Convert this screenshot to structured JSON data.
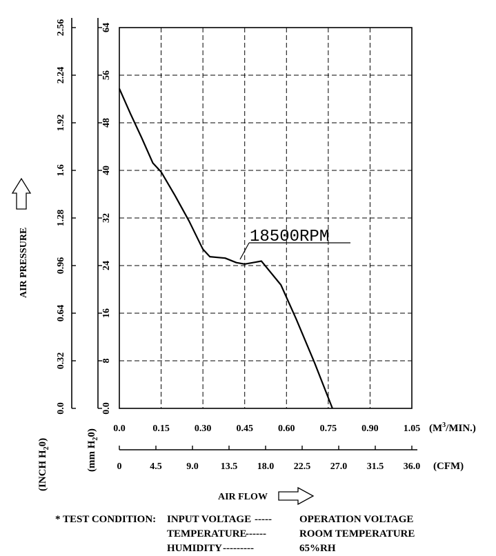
{
  "chart_data": {
    "type": "line",
    "title": "",
    "series": [
      {
        "name": "18500RPM",
        "x": [
          0.0,
          0.04,
          0.08,
          0.12,
          0.15,
          0.2,
          0.25,
          0.3,
          0.325,
          0.38,
          0.42,
          0.45,
          0.48,
          0.51,
          0.58,
          0.635,
          0.7,
          0.765
        ],
        "y": [
          2.15,
          1.98,
          1.82,
          1.65,
          1.59,
          1.43,
          1.26,
          1.07,
          1.02,
          1.01,
          0.98,
          0.97,
          0.98,
          0.99,
          0.83,
          0.6,
          0.31,
          0.0
        ]
      }
    ],
    "annotation": "18500RPM",
    "xlim": [
      0.0,
      1.05
    ],
    "x_ticks_m3": [
      "0.0",
      "0.15",
      "0.30",
      "0.45",
      "0.60",
      "0.75",
      "0.90",
      "1.05"
    ],
    "x_unit_m3": "(M³/MIN.)",
    "x_ticks_cfm": [
      "0",
      "4.5",
      "9.0",
      "13.5",
      "18.0",
      "22.5",
      "27.0",
      "31.5",
      "36.0"
    ],
    "x_unit_cfm": "(CFM)",
    "xlabel": "AIR FLOW",
    "ylim": [
      0.0,
      2.56
    ],
    "y_ticks_inch": [
      "0.0",
      "0.32",
      "0.64",
      "0.96",
      "1.28",
      "1.6",
      "1.92",
      "2.24",
      "2.56"
    ],
    "y_ticks_mm": [
      "0.0",
      "8",
      "16",
      "24",
      "32",
      "40",
      "48",
      "56",
      "64"
    ],
    "y_unit_inch": "(INCH H₂O)",
    "y_unit_mm": "(mm H₂O)",
    "ylabel": "AIR PRESSURE",
    "grid": true
  },
  "test_condition": {
    "prefix": "* TEST CONDITION:",
    "rows": [
      {
        "param": "INPUT VOLTAGE",
        "dash": "-----",
        "value": "OPERATION VOLTAGE"
      },
      {
        "param": "TEMPERATURE",
        "dash": "------",
        "value": "ROOM TEMPERATURE"
      },
      {
        "param": "HUMIDITY",
        "dash": "---------",
        "value": "65%RH"
      }
    ]
  }
}
